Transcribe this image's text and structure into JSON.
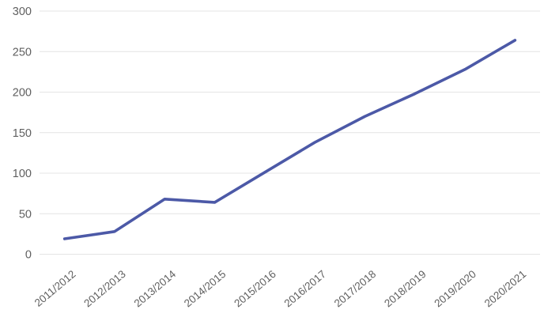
{
  "chart_data": {
    "type": "line",
    "title": "",
    "xlabel": "",
    "ylabel": "",
    "categories": [
      "2011/2012",
      "2012/2013",
      "2013/2014",
      "2014/2015",
      "2015/2016",
      "2016/2017",
      "2017/2018",
      "2018/2019",
      "2019/2020",
      "2020/2021"
    ],
    "series": [
      {
        "name": "series-1",
        "values": [
          19,
          28,
          68,
          64,
          101,
          138,
          170,
          198,
          228,
          264
        ]
      }
    ],
    "ylim": [
      0,
      300
    ],
    "yticks": [
      0,
      50,
      100,
      150,
      200,
      250,
      300
    ],
    "grid": "horizontal",
    "legend": "none",
    "x_label_rotation_deg": -40,
    "colors": {
      "line": "#4C59A7",
      "gridline": "#E4E4E4",
      "tick_label": "#606060",
      "background": "#FFFFFF"
    }
  }
}
